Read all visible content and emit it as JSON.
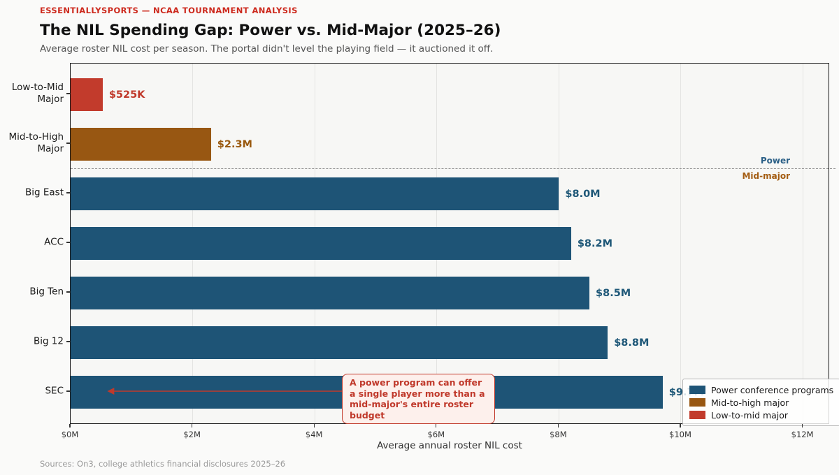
{
  "header": {
    "eyebrow": "ESSENTIALLYSPORTS — NCAA TOURNAMENT ANALYSIS",
    "title": "The NIL Spending Gap: Power vs. Mid-Major (2025–26)",
    "subtitle": "Average roster NIL cost per season. The portal didn't level the playing field — it auctioned it off."
  },
  "footer": {
    "source": "Sources: On3, college athletics financial disclosures 2025–26"
  },
  "colors": {
    "power": "#1e5476",
    "mid_to_high": "#985712",
    "low_to_mid": "#c23b2c",
    "power_value_label": "#1f5878",
    "mid_to_high_value_label": "#9a5a10",
    "low_to_mid_value_label": "#c0392b",
    "divider_label_power": "#2a5f86",
    "divider_label_mid_major": "#a35c11",
    "annotation_red": "#c0392b",
    "divider_gray": "#8a8a8a"
  },
  "chart_data": {
    "type": "bar",
    "orientation": "horizontal",
    "title": "The NIL Spending Gap: Power vs. Mid-Major (2025–26)",
    "xlabel": "Average annual roster NIL cost",
    "xlim_millions": [
      0,
      12.44
    ],
    "grid": "vertical-only",
    "legend_position": "lower right",
    "x_ticks": [
      {
        "value_millions": 0,
        "label": "$0M"
      },
      {
        "value_millions": 2,
        "label": "$2M"
      },
      {
        "value_millions": 4,
        "label": "$4M"
      },
      {
        "value_millions": 6,
        "label": "$6M"
      },
      {
        "value_millions": 8,
        "label": "$8M"
      },
      {
        "value_millions": 10,
        "label": "$10M"
      },
      {
        "value_millions": 12,
        "label": "$12M"
      }
    ],
    "bars": [
      {
        "category": "Low-to-Mid\nMajor",
        "value_millions": 0.525,
        "value_label": "$525K",
        "group": "low_to_mid"
      },
      {
        "category": "Mid-to-High\nMajor",
        "value_millions": 2.3,
        "value_label": "$2.3M",
        "group": "mid_to_high"
      },
      {
        "category": "Big East",
        "value_millions": 8.0,
        "value_label": "$8.0M",
        "group": "power"
      },
      {
        "category": "ACC",
        "value_millions": 8.2,
        "value_label": "$8.2M",
        "group": "power"
      },
      {
        "category": "Big Ten",
        "value_millions": 8.5,
        "value_label": "$8.5M",
        "group": "power"
      },
      {
        "category": "Big 12",
        "value_millions": 8.8,
        "value_label": "$8.8M",
        "group": "power"
      },
      {
        "category": "SEC",
        "value_millions": 9.7,
        "value_label": "$9.7M",
        "group": "power"
      }
    ],
    "divider": {
      "after_category_index": 1,
      "label_above": "Power",
      "label_below": "Mid-major"
    },
    "annotation": {
      "text": "A power program can offer\na single player more than a\nmid-major's entire roster budget",
      "attached_category": "SEC",
      "arrow_points_to_millions": 0.6
    },
    "legend": [
      {
        "label": "Power conference programs",
        "group": "power"
      },
      {
        "label": "Mid-to-high major",
        "group": "mid_to_high"
      },
      {
        "label": "Low-to-mid major",
        "group": "low_to_mid"
      }
    ]
  }
}
